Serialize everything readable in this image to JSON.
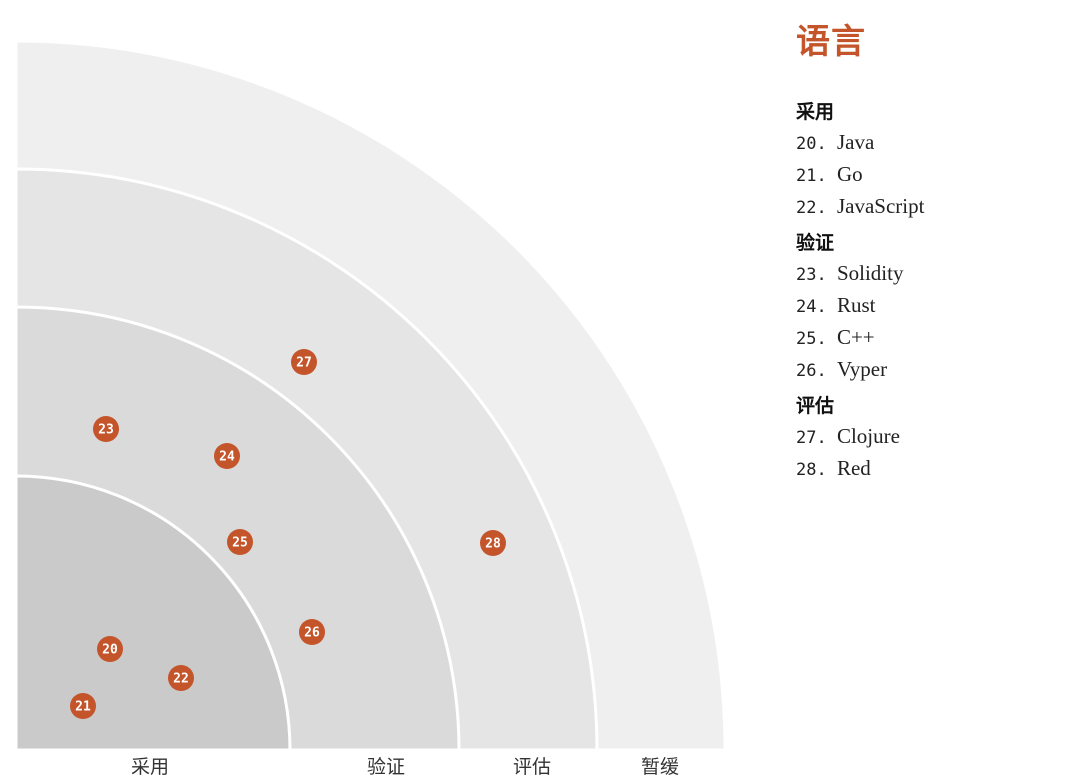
{
  "legend": {
    "title": "语言",
    "groups": [
      {
        "title": "采用",
        "items": [
          {
            "num": "20.",
            "name": "Java"
          },
          {
            "num": "21.",
            "name": "Go"
          },
          {
            "num": "22.",
            "name": "JavaScript"
          }
        ]
      },
      {
        "title": "验证",
        "items": [
          {
            "num": "23.",
            "name": "Solidity"
          },
          {
            "num": "24.",
            "name": "Rust"
          },
          {
            "num": "25.",
            "name": "C++"
          },
          {
            "num": "26.",
            "name": "Vyper"
          }
        ]
      },
      {
        "title": "评估",
        "items": [
          {
            "num": "27.",
            "name": "Clojure"
          },
          {
            "num": "28.",
            "name": "Red"
          }
        ]
      }
    ]
  },
  "rings": [
    {
      "label": "采用",
      "color": "#cacaca"
    },
    {
      "label": "验证",
      "color": "#dadada"
    },
    {
      "label": "评估",
      "color": "#e5e5e5"
    },
    {
      "label": "暂缓",
      "color": "#efefef"
    }
  ],
  "blips": [
    {
      "id": "20",
      "ring": "采用"
    },
    {
      "id": "21",
      "ring": "采用"
    },
    {
      "id": "22",
      "ring": "采用"
    },
    {
      "id": "23",
      "ring": "验证"
    },
    {
      "id": "24",
      "ring": "验证"
    },
    {
      "id": "25",
      "ring": "验证"
    },
    {
      "id": "26",
      "ring": "验证"
    },
    {
      "id": "27",
      "ring": "评估"
    },
    {
      "id": "28",
      "ring": "评估"
    }
  ],
  "colors": {
    "accent": "#c4542a",
    "ring_separator": "#ffffff"
  }
}
